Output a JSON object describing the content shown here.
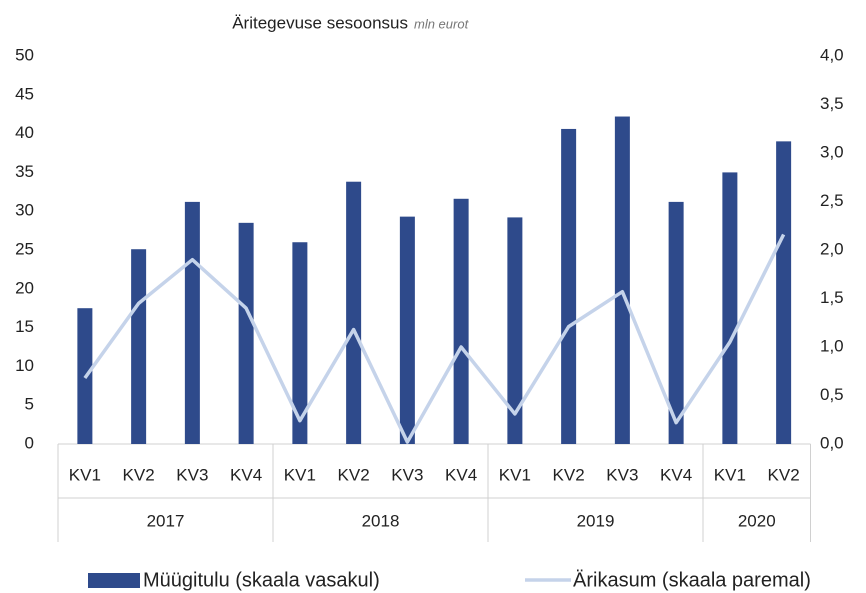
{
  "chart_data": {
    "type": "bar_line",
    "title": "Äritegevuse sesoonsus",
    "subtitle": "mln eurot",
    "groups": [
      {
        "label": "2017",
        "categories": [
          "KV1",
          "KV2",
          "KV3",
          "KV4"
        ]
      },
      {
        "label": "2018",
        "categories": [
          "KV1",
          "KV2",
          "KV3",
          "KV4"
        ]
      },
      {
        "label": "2019",
        "categories": [
          "KV1",
          "KV2",
          "KV3",
          "KV4"
        ]
      },
      {
        "label": "2020",
        "categories": [
          "KV1",
          "KV2"
        ]
      }
    ],
    "series": [
      {
        "name": "Müügitulu (skaala vasakul)",
        "type": "bar",
        "color": "#2e4a8b",
        "axis": "y",
        "values": [
          17.5,
          25.1,
          31.2,
          28.5,
          26,
          33.8,
          29.3,
          31.6,
          29.2,
          40.6,
          42.2,
          31.2,
          35,
          39
        ]
      },
      {
        "name": "Ärikasum (skaala paremal)",
        "type": "line",
        "color": "#c5d3ea",
        "axis": "y2",
        "values": [
          0.68,
          1.45,
          1.9,
          1.4,
          0.24,
          1.18,
          0.02,
          1.0,
          0.31,
          1.21,
          1.57,
          0.22,
          1.05,
          2.16
        ]
      }
    ],
    "ylim": [
      0,
      50
    ],
    "yticks": [
      0,
      5,
      10,
      15,
      20,
      25,
      30,
      35,
      40,
      45,
      50
    ],
    "y2lim": [
      0,
      4
    ],
    "y2ticks": [
      {
        "value": 0,
        "label": "0,0"
      },
      {
        "value": 0.5,
        "label": "0,5"
      },
      {
        "value": 1,
        "label": "1,0"
      },
      {
        "value": 1.5,
        "label": "1,5"
      },
      {
        "value": 2,
        "label": "2,0"
      },
      {
        "value": 2.5,
        "label": "2,5"
      },
      {
        "value": 3,
        "label": "3,0"
      },
      {
        "value": 3.5,
        "label": "3,5"
      },
      {
        "value": 4,
        "label": "4,0"
      }
    ],
    "grid": false,
    "legend": "bottom"
  }
}
